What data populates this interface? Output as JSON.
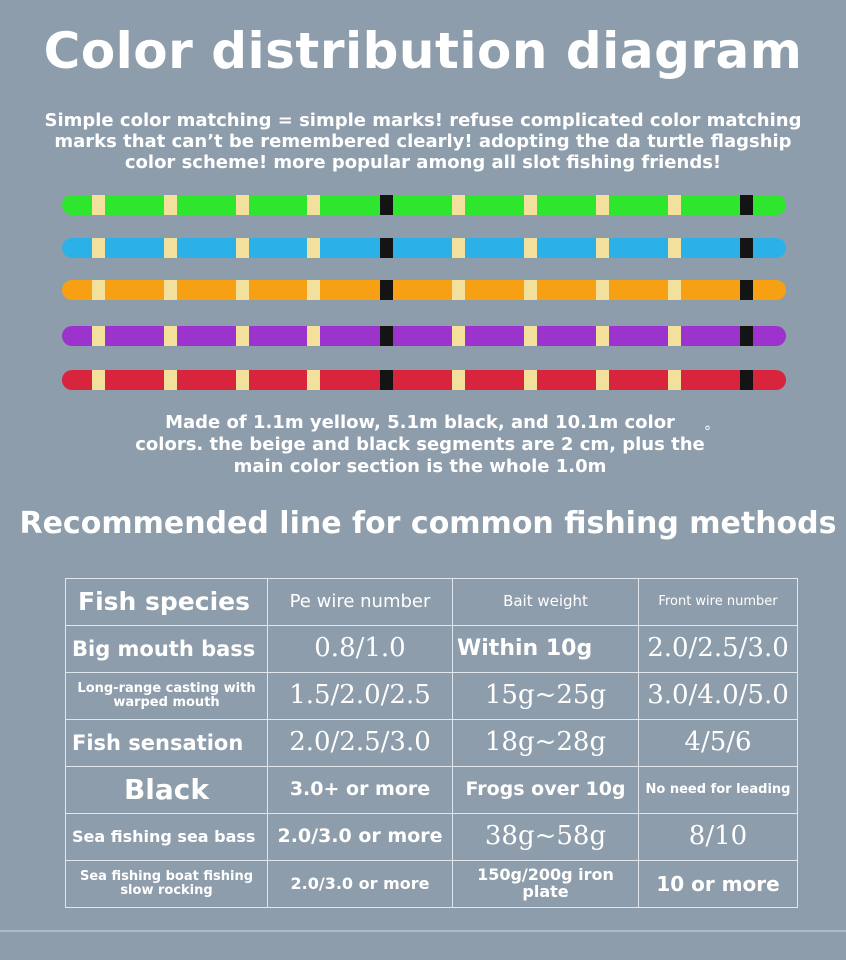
{
  "title": "Color distribution diagram",
  "intro_lines": [
    "Simple color matching = simple marks! refuse complicated color matching",
    "marks that can’t be remembered clearly! adopting the da turtle flagship",
    "color scheme! more popular among all slot fishing friends!"
  ],
  "lines": [
    {
      "color_name": "green",
      "color": "#2ee62e"
    },
    {
      "color_name": "blue",
      "color": "#2bb1e8"
    },
    {
      "color_name": "orange",
      "color": "#f7a014"
    },
    {
      "color_name": "purple",
      "color": "#9b33cc"
    },
    {
      "color_name": "red",
      "color": "#d8243c"
    }
  ],
  "marker_colors": {
    "beige": "#f3e09c",
    "black": "#141414"
  },
  "note_lines": [
    "Made of 1.1m yellow, 5.1m black, and 10.1m color",
    "colors. the beige and black segments are 2 cm, plus the",
    "main color section is the whole 1.0m"
  ],
  "note_degree": "°",
  "subtitle": "Recommended line for common fishing methods",
  "table": {
    "headers": [
      "Fish species",
      "Pe wire number",
      "Bait weight",
      "Front wire number"
    ],
    "rows": [
      [
        "Big mouth bass",
        "0.8/1.0",
        "Within 10g",
        "2.0/2.5/3.0"
      ],
      [
        "Long-range casting with warped mouth",
        "1.5/2.0/2.5",
        "15g~25g",
        "3.0/4.0/5.0"
      ],
      [
        "Fish sensation",
        "2.0/2.5/3.0",
        "18g~28g",
        "4/5/6"
      ],
      [
        "Black",
        "3.0+ or more",
        "Frogs over 10g",
        "No need for leading"
      ],
      [
        "Sea fishing sea bass",
        "2.0/3.0 or more",
        "38g~58g",
        "8/10"
      ],
      [
        "Sea fishing boat fishing slow rocking",
        "2.0/3.0 or more",
        "150g/200g iron plate",
        "10 or more"
      ]
    ]
  }
}
